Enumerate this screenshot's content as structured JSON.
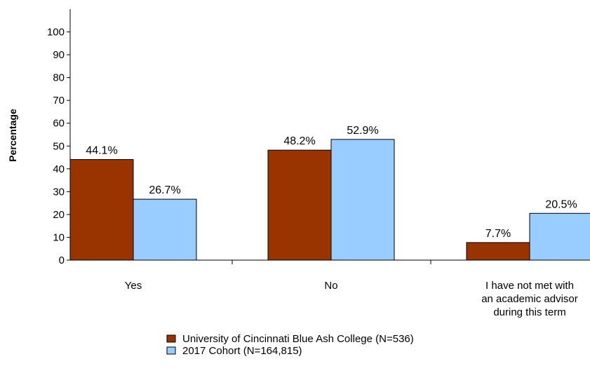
{
  "chart_data": {
    "type": "bar",
    "title": "",
    "ylabel": "Percentage",
    "xlabel": "",
    "ylim": [
      0,
      100
    ],
    "yticks": [
      0,
      10,
      20,
      30,
      40,
      50,
      60,
      70,
      80,
      90,
      100
    ],
    "grid": false,
    "legend_position": "bottom",
    "categories": [
      [
        "Yes"
      ],
      [
        "No"
      ],
      [
        "I have not met with",
        "an academic advisor",
        "during this term"
      ]
    ],
    "series": [
      {
        "name": "University of Cincinnati Blue Ash College (N=536)",
        "color": "#993300",
        "values": [
          44.1,
          48.2,
          7.7
        ],
        "labels": [
          "44.1%",
          "48.2%",
          "7.7%"
        ]
      },
      {
        "name": "2017 Cohort (N=164,815)",
        "color": "#99CCFF",
        "values": [
          26.7,
          52.9,
          20.5
        ],
        "labels": [
          "26.7%",
          "52.9%",
          "20.5%"
        ]
      }
    ]
  }
}
